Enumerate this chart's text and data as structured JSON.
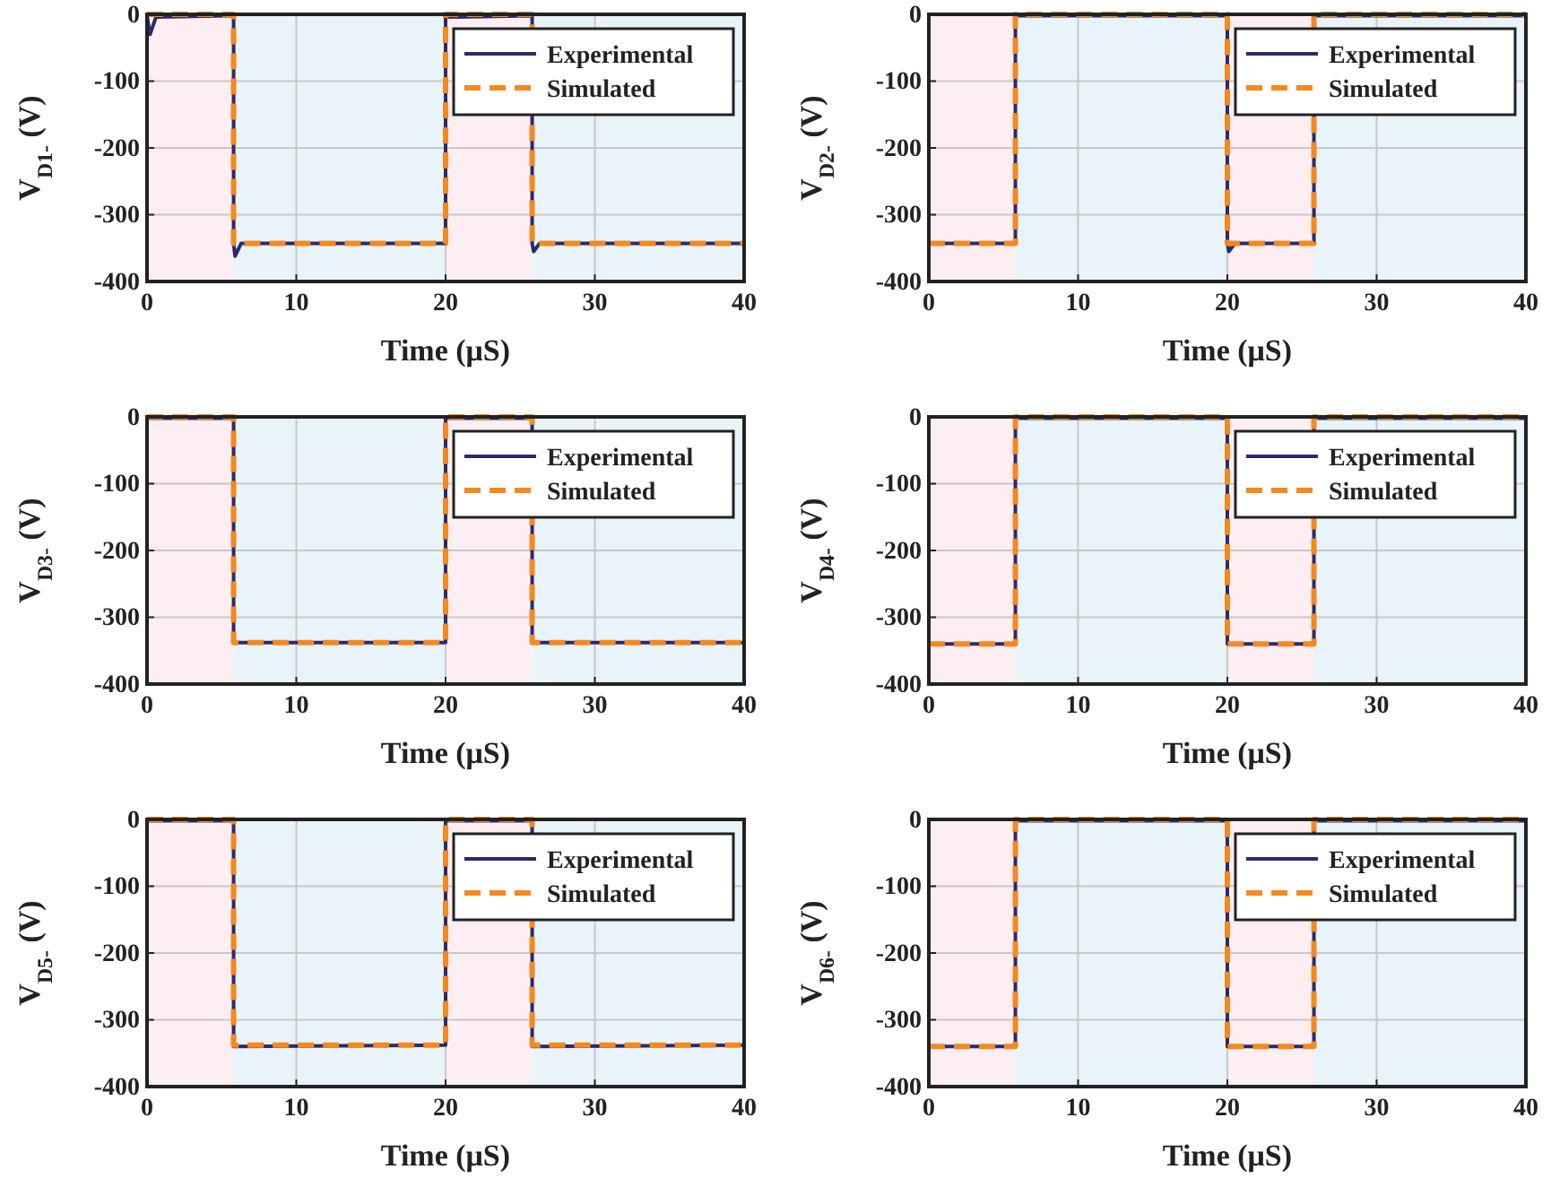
{
  "chart_data": [
    {
      "type": "line",
      "xlabel": "Time (μS)",
      "ylabel": "V$_{D1-}$ (V)",
      "xlim": [
        0,
        40
      ],
      "xticks": [
        0,
        10,
        20,
        30,
        40
      ],
      "ylim": [
        -400,
        0
      ],
      "yticks": [
        -400,
        -300,
        -200,
        -100,
        0
      ],
      "grid": true,
      "legend": "top right",
      "bands": [
        {
          "axis": "x",
          "from": 0,
          "to": 5.8,
          "color": "#fdeef2"
        },
        {
          "axis": "x",
          "from": 5.8,
          "to": 20,
          "color": "#e8f4fa"
        },
        {
          "axis": "x",
          "from": 20,
          "to": 25.8,
          "color": "#fdeef2"
        },
        {
          "axis": "x",
          "from": 25.8,
          "to": 40,
          "color": "#e8f4fa"
        }
      ],
      "series": [
        {
          "name": "Experimental",
          "color": "#2b2a6e",
          "line_style": "solid",
          "x": [
            0,
            0.2,
            0.6,
            5.8,
            5.8,
            5.9,
            6.3,
            20,
            20,
            20.3,
            25.8,
            25.8,
            25.9,
            26.3,
            40
          ],
          "values": [
            -2,
            -30,
            -4,
            -2,
            -343,
            -362,
            -343,
            -343,
            -2,
            -4,
            -2,
            -343,
            -355,
            -343,
            -343
          ]
        },
        {
          "name": "Simulated",
          "color": "#f5891f",
          "line_style": "dashed",
          "x": [
            0,
            5.8,
            5.8,
            20,
            20,
            25.8,
            25.8,
            40
          ],
          "values": [
            0,
            0,
            -343,
            -343,
            0,
            0,
            -343,
            -343
          ]
        }
      ]
    },
    {
      "type": "line",
      "xlabel": "Time (μS)",
      "ylabel": "V$_{D2-}$ (V)",
      "xlim": [
        0,
        40
      ],
      "xticks": [
        0,
        10,
        20,
        30,
        40
      ],
      "ylim": [
        -400,
        0
      ],
      "yticks": [
        -400,
        -300,
        -200,
        -100,
        0
      ],
      "grid": true,
      "legend": "top right",
      "bands": [
        {
          "axis": "x",
          "from": 0,
          "to": 5.8,
          "color": "#fdeef2"
        },
        {
          "axis": "x",
          "from": 5.8,
          "to": 20,
          "color": "#e8f4fa"
        },
        {
          "axis": "x",
          "from": 20,
          "to": 25.8,
          "color": "#fdeef2"
        },
        {
          "axis": "x",
          "from": 25.8,
          "to": 40,
          "color": "#e8f4fa"
        }
      ],
      "series": [
        {
          "name": "Experimental",
          "color": "#2b2a6e",
          "line_style": "solid",
          "x": [
            0,
            5.8,
            5.8,
            20,
            20,
            20.1,
            20.5,
            25.8,
            25.8,
            40
          ],
          "values": [
            -343,
            -343,
            -2,
            -2,
            -343,
            -355,
            -343,
            -343,
            -2,
            -2
          ]
        },
        {
          "name": "Simulated",
          "color": "#f5891f",
          "line_style": "dashed",
          "x": [
            0,
            5.8,
            5.8,
            20,
            20,
            25.8,
            25.8,
            40
          ],
          "values": [
            -343,
            -343,
            0,
            0,
            -343,
            -343,
            0,
            0
          ]
        }
      ]
    },
    {
      "type": "line",
      "xlabel": "Time (μS)",
      "ylabel": "V$_{D3-}$ (V)",
      "xlim": [
        0,
        40
      ],
      "xticks": [
        0,
        10,
        20,
        30,
        40
      ],
      "ylim": [
        -400,
        0
      ],
      "yticks": [
        -400,
        -300,
        -200,
        -100,
        0
      ],
      "grid": true,
      "legend": "top right",
      "bands": [
        {
          "axis": "x",
          "from": 0,
          "to": 5.8,
          "color": "#fdeef2"
        },
        {
          "axis": "x",
          "from": 5.8,
          "to": 20,
          "color": "#e8f4fa"
        },
        {
          "axis": "x",
          "from": 20,
          "to": 25.8,
          "color": "#fdeef2"
        },
        {
          "axis": "x",
          "from": 25.8,
          "to": 40,
          "color": "#e8f4fa"
        }
      ],
      "series": [
        {
          "name": "Experimental",
          "color": "#2b2a6e",
          "line_style": "solid",
          "x": [
            0,
            5.8,
            5.8,
            20,
            20,
            25.8,
            25.8,
            40
          ],
          "values": [
            -2,
            -2,
            -338,
            -338,
            -2,
            -2,
            -338,
            -338
          ]
        },
        {
          "name": "Simulated",
          "color": "#f5891f",
          "line_style": "dashed",
          "x": [
            0,
            5.8,
            5.8,
            20,
            20,
            25.8,
            25.8,
            40
          ],
          "values": [
            0,
            0,
            -338,
            -338,
            0,
            0,
            -338,
            -338
          ]
        }
      ]
    },
    {
      "type": "line",
      "xlabel": "Time (μS)",
      "ylabel": "V$_{D4-}$ (V)",
      "xlim": [
        0,
        40
      ],
      "xticks": [
        0,
        10,
        20,
        30,
        40
      ],
      "ylim": [
        -400,
        0
      ],
      "yticks": [
        -400,
        -300,
        -200,
        -100,
        0
      ],
      "grid": true,
      "legend": "top right",
      "bands": [
        {
          "axis": "x",
          "from": 0,
          "to": 5.8,
          "color": "#fdeef2"
        },
        {
          "axis": "x",
          "from": 5.8,
          "to": 20,
          "color": "#e8f4fa"
        },
        {
          "axis": "x",
          "from": 20,
          "to": 25.8,
          "color": "#fdeef2"
        },
        {
          "axis": "x",
          "from": 25.8,
          "to": 40,
          "color": "#e8f4fa"
        }
      ],
      "series": [
        {
          "name": "Experimental",
          "color": "#2b2a6e",
          "line_style": "solid",
          "x": [
            0,
            5.8,
            5.8,
            20,
            20,
            25.8,
            25.8,
            40
          ],
          "values": [
            -340,
            -340,
            -2,
            -2,
            -340,
            -340,
            -2,
            -2
          ]
        },
        {
          "name": "Simulated",
          "color": "#f5891f",
          "line_style": "dashed",
          "x": [
            0,
            5.8,
            5.8,
            20,
            20,
            25.8,
            25.8,
            40
          ],
          "values": [
            -340,
            -340,
            0,
            0,
            -340,
            -340,
            0,
            0
          ]
        }
      ]
    },
    {
      "type": "line",
      "xlabel": "Time (μS)",
      "ylabel": "V$_{D5-}$ (V)",
      "xlim": [
        0,
        40
      ],
      "xticks": [
        0,
        10,
        20,
        30,
        40
      ],
      "ylim": [
        -400,
        0
      ],
      "yticks": [
        -400,
        -300,
        -200,
        -100,
        0
      ],
      "grid": true,
      "legend": "top right",
      "bands": [
        {
          "axis": "x",
          "from": 0,
          "to": 5.8,
          "color": "#fdeef2"
        },
        {
          "axis": "x",
          "from": 5.8,
          "to": 20,
          "color": "#e8f4fa"
        },
        {
          "axis": "x",
          "from": 20,
          "to": 25.8,
          "color": "#fdeef2"
        },
        {
          "axis": "x",
          "from": 25.8,
          "to": 40,
          "color": "#e8f4fa"
        }
      ],
      "series": [
        {
          "name": "Experimental",
          "color": "#2b2a6e",
          "line_style": "solid",
          "x": [
            0,
            5.8,
            5.8,
            20,
            20,
            25.8,
            25.8,
            40
          ],
          "values": [
            -2,
            -2,
            -340,
            -338,
            -2,
            -2,
            -340,
            -338
          ]
        },
        {
          "name": "Simulated",
          "color": "#f5891f",
          "line_style": "dashed",
          "x": [
            0,
            5.8,
            5.8,
            20,
            20,
            25.8,
            25.8,
            40
          ],
          "values": [
            0,
            0,
            -338,
            -338,
            0,
            0,
            -338,
            -338
          ]
        }
      ]
    },
    {
      "type": "line",
      "xlabel": "Time (μS)",
      "ylabel": "V$_{D6-}$ (V)",
      "xlim": [
        0,
        40
      ],
      "xticks": [
        0,
        10,
        20,
        30,
        40
      ],
      "ylim": [
        -400,
        0
      ],
      "yticks": [
        -400,
        -300,
        -200,
        -100,
        0
      ],
      "grid": true,
      "legend": "top right",
      "bands": [
        {
          "axis": "x",
          "from": 0,
          "to": 5.8,
          "color": "#fdeef2"
        },
        {
          "axis": "x",
          "from": 5.8,
          "to": 20,
          "color": "#e8f4fa"
        },
        {
          "axis": "x",
          "from": 20,
          "to": 25.8,
          "color": "#fdeef2"
        },
        {
          "axis": "x",
          "from": 25.8,
          "to": 40,
          "color": "#e8f4fa"
        }
      ],
      "series": [
        {
          "name": "Experimental",
          "color": "#2b2a6e",
          "line_style": "solid",
          "x": [
            0,
            5.8,
            5.8,
            20,
            20,
            25.8,
            25.8,
            40
          ],
          "values": [
            -340,
            -340,
            -2,
            -2,
            -340,
            -340,
            -2,
            -2
          ]
        },
        {
          "name": "Simulated",
          "color": "#f5891f",
          "line_style": "dashed",
          "x": [
            0,
            5.8,
            5.8,
            20,
            20,
            25.8,
            25.8,
            40
          ],
          "values": [
            -340,
            -340,
            0,
            0,
            -340,
            -340,
            0,
            0
          ]
        }
      ]
    }
  ]
}
